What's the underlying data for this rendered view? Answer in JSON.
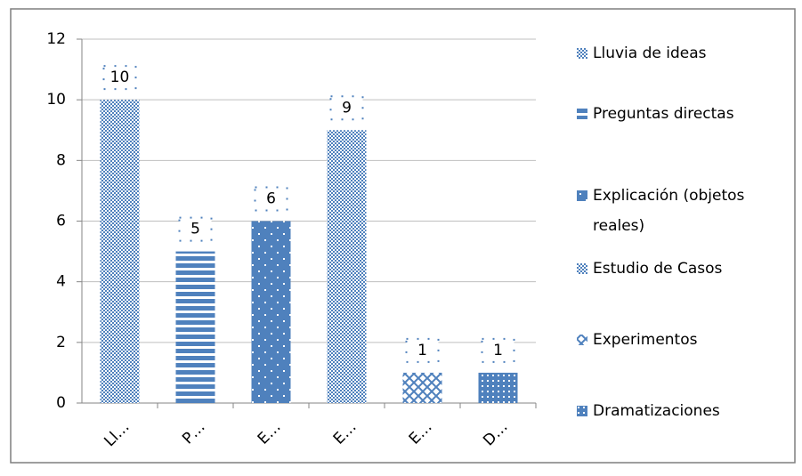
{
  "chart_data": {
    "type": "bar",
    "categories": [
      "Ll…",
      "P…",
      "E…",
      "E…",
      "E…",
      "D…"
    ],
    "legend": [
      "Lluvia de ideas",
      "Preguntas directas",
      "Explicación (objetos reales)",
      "Estudio de Casos",
      "Experimentos",
      "Dramatizaciones"
    ],
    "values": [
      10,
      5,
      6,
      9,
      1,
      1
    ],
    "color": "#4f81bd",
    "patterns": [
      "checker",
      "hstripes",
      "dots",
      "checker",
      "weave",
      "bigdots"
    ],
    "ylim": [
      0,
      12
    ],
    "yticks": [
      0,
      2,
      4,
      6,
      8,
      10,
      12
    ],
    "grid": true
  }
}
